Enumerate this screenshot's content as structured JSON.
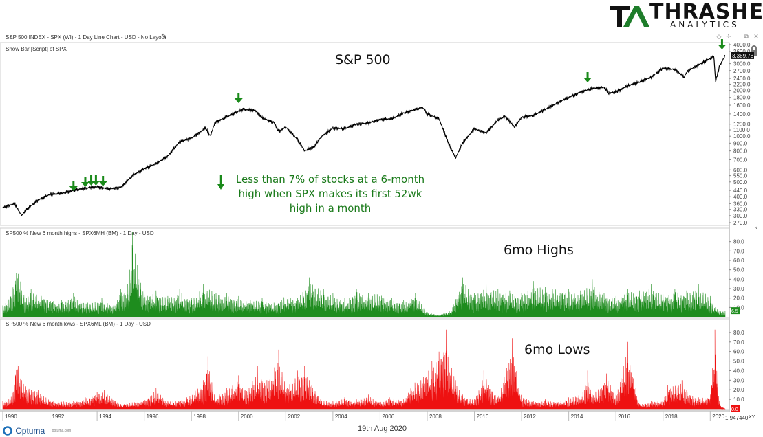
{
  "brand": {
    "main": "THRASHER",
    "sub": "ANALYTICS",
    "mark": "TA"
  },
  "header": {
    "chart_title": "S&P 500 INDEX - SPX (WI) - 1 Day Line Chart - USD - No Layout",
    "script_label": "Show Bar [Script] of SPX",
    "pane2_label": "SP500 % New 6 month highs - SPX6MH (BM) - 1 Day - USD",
    "pane3_label": "SP500 % New 6 month lows - SPX6ML (BM) - 1 Day - USD"
  },
  "footer": {
    "date": "19th Aug 2020",
    "brand": "Optuma",
    "site": "optuma.com",
    "corner_value": "1.947440",
    "xy": "XY"
  },
  "annotation": "Less than 7% of stocks at a 6-month high when SPX makes its first 52wk high in a month",
  "colors": {
    "price": "#000000",
    "highs": "#1e8c1e",
    "lows": "#ee1111",
    "arrows": "#1a8a1a"
  },
  "chart_data": [
    {
      "type": "line",
      "title": "S&P 500",
      "y_scale": "log",
      "ylim": [
        270,
        4000
      ],
      "last_value_label": "3,389.78",
      "y_ticks": [
        "4000.0",
        "3600.0",
        "3000.0",
        "2700.0",
        "2400.0",
        "2200.0",
        "2000.0",
        "1800.0",
        "1600.0",
        "1400.0",
        "1200.0",
        "1100.0",
        "1000.0",
        "900.0",
        "800.0",
        "700.0",
        "600.0",
        "550.0",
        "500.0",
        "440.0",
        "400.0",
        "360.0",
        "330.0",
        "300.0",
        "270.0"
      ],
      "x_ticks": [
        "1990",
        "1992",
        "1994",
        "1996",
        "1998",
        "2000",
        "2002",
        "2004",
        "2006",
        "2008",
        "2010",
        "2012",
        "2014",
        "2016",
        "2018",
        "2020"
      ],
      "series": [
        {
          "x": [
            1990.0,
            1990.5,
            1990.8,
            1991.0,
            1991.5,
            1992.0,
            1992.5,
            1993.0,
            1993.5,
            1994.0,
            1994.5,
            1995.0,
            1995.5,
            1996.0,
            1996.5,
            1997.0,
            1997.5,
            1998.0,
            1998.6,
            1998.8,
            1999.0,
            1999.5,
            2000.0,
            2000.2,
            2000.7,
            2001.0,
            2001.5,
            2001.7,
            2002.0,
            2002.5,
            2002.8,
            2003.2,
            2003.5,
            2004.0,
            2004.5,
            2005.0,
            2005.5,
            2006.0,
            2006.5,
            2007.0,
            2007.5,
            2007.8,
            2008.0,
            2008.5,
            2008.9,
            2009.2,
            2009.5,
            2010.0,
            2010.5,
            2011.0,
            2011.3,
            2011.7,
            2012.0,
            2012.5,
            2013.0,
            2013.5,
            2014.0,
            2014.5,
            2015.0,
            2015.5,
            2015.7,
            2016.0,
            2016.5,
            2017.0,
            2017.5,
            2018.0,
            2018.5,
            2018.9,
            2019.0,
            2019.5,
            2020.0,
            2020.15,
            2020.23,
            2020.4,
            2020.63
          ],
          "values": [
            340,
            360,
            300,
            330,
            380,
            415,
            420,
            440,
            455,
            465,
            450,
            460,
            550,
            610,
            660,
            740,
            920,
            970,
            1130,
            1000,
            1230,
            1340,
            1460,
            1500,
            1480,
            1320,
            1230,
            1070,
            1150,
            950,
            800,
            850,
            990,
            1130,
            1120,
            1200,
            1220,
            1290,
            1300,
            1420,
            1500,
            1550,
            1400,
            1300,
            900,
            720,
            900,
            1120,
            1050,
            1280,
            1350,
            1150,
            1330,
            1370,
            1500,
            1650,
            1800,
            1950,
            2060,
            2100,
            1920,
            1950,
            2150,
            2270,
            2450,
            2800,
            2750,
            2450,
            2650,
            2950,
            3250,
            3380,
            2300,
            2900,
            3389.78
          ]
        }
      ]
    },
    {
      "type": "bar",
      "title": "6mo Highs",
      "ylim": [
        0,
        90
      ],
      "last_value_label": "6.5",
      "y_ticks": [
        "80.0",
        "70.0",
        "60.0",
        "50.0",
        "40.0",
        "30.0",
        "20.0",
        "10.0"
      ],
      "series": [
        {
          "name": "SP500 % New 6 month highs",
          "x": [
            1990.0,
            1990.3,
            1990.6,
            1991.0,
            1991.2,
            1992.0,
            1992.5,
            1993.0,
            1993.6,
            1994.2,
            1994.7,
            1995.0,
            1995.3,
            1995.5,
            1996.0,
            1996.5,
            1997.0,
            1997.5,
            1998.0,
            1998.5,
            1999.0,
            1999.5,
            2000.0,
            2000.5,
            2001.0,
            2001.5,
            2002.0,
            2002.5,
            2003.0,
            2003.6,
            2004.0,
            2004.5,
            2005.0,
            2005.5,
            2006.0,
            2006.5,
            2007.0,
            2007.5,
            2008.0,
            2008.5,
            2009.0,
            2009.5,
            2010.0,
            2010.5,
            2011.0,
            2011.5,
            2012.0,
            2012.5,
            2013.0,
            2013.5,
            2014.0,
            2014.5,
            2015.0,
            2015.5,
            2016.0,
            2016.5,
            2017.0,
            2017.5,
            2018.0,
            2018.5,
            2019.0,
            2019.5,
            2020.0,
            2020.3,
            2020.63
          ],
          "values": [
            12,
            25,
            58,
            20,
            30,
            22,
            18,
            25,
            15,
            20,
            12,
            30,
            35,
            90,
            25,
            28,
            22,
            30,
            20,
            35,
            30,
            25,
            22,
            18,
            20,
            15,
            25,
            20,
            42,
            30,
            25,
            20,
            30,
            25,
            28,
            20,
            18,
            25,
            5,
            2,
            8,
            42,
            25,
            35,
            30,
            28,
            25,
            38,
            32,
            35,
            30,
            28,
            40,
            25,
            22,
            30,
            28,
            35,
            25,
            30,
            28,
            35,
            22,
            8,
            6.5
          ]
        }
      ]
    },
    {
      "type": "bar",
      "title": "6mo Lows",
      "ylim": [
        0,
        90
      ],
      "last_value_label": "0.0",
      "y_ticks": [
        "80.0",
        "70.0",
        "60.0",
        "50.0",
        "40.0",
        "30.0",
        "20.0",
        "10.0"
      ],
      "series": [
        {
          "name": "SP500 % New 6 month lows",
          "x": [
            1990.0,
            1990.4,
            1990.6,
            1990.8,
            1991.5,
            1992.0,
            1993.0,
            1993.5,
            1994.0,
            1994.3,
            1995.0,
            1996.0,
            1996.5,
            1997.0,
            1997.8,
            1998.5,
            1998.7,
            1999.0,
            1999.5,
            2000.0,
            2000.3,
            2000.8,
            2001.2,
            2001.7,
            2002.0,
            2002.5,
            2002.8,
            2003.5,
            2004.0,
            2004.5,
            2005.0,
            2005.5,
            2006.0,
            2006.4,
            2007.0,
            2007.4,
            2007.6,
            2007.9,
            2008.2,
            2008.5,
            2008.8,
            2009.0,
            2009.2,
            2009.5,
            2010.0,
            2010.4,
            2011.0,
            2011.6,
            2012.0,
            2012.5,
            2013.0,
            2013.5,
            2014.0,
            2014.6,
            2014.8,
            2015.0,
            2015.6,
            2016.0,
            2016.5,
            2017.0,
            2017.5,
            2018.0,
            2018.2,
            2018.8,
            2019.0,
            2019.5,
            2020.0,
            2020.2,
            2020.4,
            2020.63
          ],
          "values": [
            8,
            15,
            60,
            30,
            20,
            10,
            8,
            12,
            18,
            20,
            5,
            10,
            22,
            8,
            12,
            30,
            55,
            15,
            22,
            35,
            20,
            45,
            30,
            62,
            25,
            40,
            45,
            10,
            8,
            12,
            10,
            15,
            8,
            12,
            10,
            30,
            35,
            40,
            50,
            60,
            83,
            55,
            30,
            15,
            10,
            40,
            12,
            74,
            15,
            8,
            10,
            8,
            12,
            18,
            40,
            15,
            37,
            15,
            70,
            5,
            8,
            10,
            25,
            30,
            20,
            12,
            15,
            83,
            5,
            0
          ]
        }
      ]
    }
  ]
}
